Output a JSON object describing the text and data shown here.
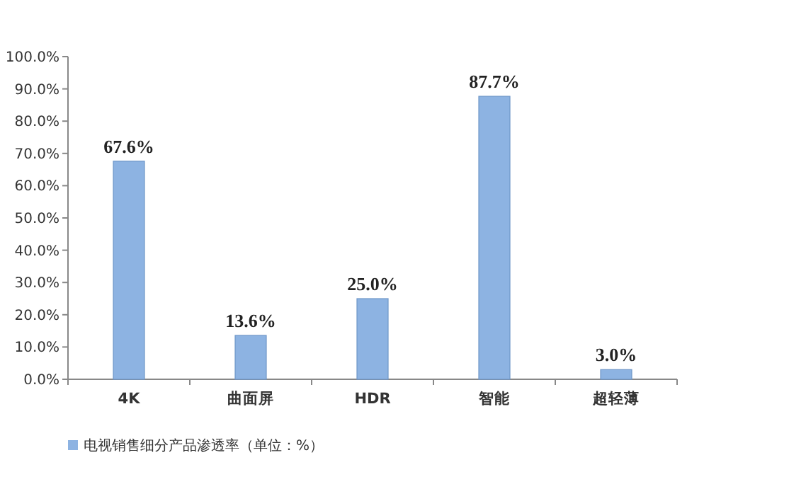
{
  "chart_data": {
    "type": "bar",
    "categories": [
      "4K",
      "曲面屏",
      "HDR",
      "智能",
      "超轻薄"
    ],
    "series": [
      {
        "name": "电视销售细分产品渗透率（单位：%）",
        "color": "#8db3e2",
        "values": [
          67.6,
          13.6,
          25.0,
          87.7,
          3.0
        ],
        "value_labels": [
          "67.6%",
          "13.6%",
          "25.0%",
          "87.7%",
          "3.0%"
        ]
      }
    ],
    "ylim": [
      0,
      100
    ],
    "yticks": [
      {
        "value": 0,
        "label": "0.0%"
      },
      {
        "value": 10,
        "label": "10.0%"
      },
      {
        "value": 20,
        "label": "20.0%"
      },
      {
        "value": 30,
        "label": "30.0%"
      },
      {
        "value": 40,
        "label": "40.0%"
      },
      {
        "value": 50,
        "label": "50.0%"
      },
      {
        "value": 60,
        "label": "60.0%"
      },
      {
        "value": 70,
        "label": "70.0%"
      },
      {
        "value": 80,
        "label": "80.0%"
      },
      {
        "value": 90,
        "label": "90.0%"
      },
      {
        "value": 100,
        "label": "100.0%"
      }
    ],
    "grid": false,
    "legend": "bottom left"
  }
}
